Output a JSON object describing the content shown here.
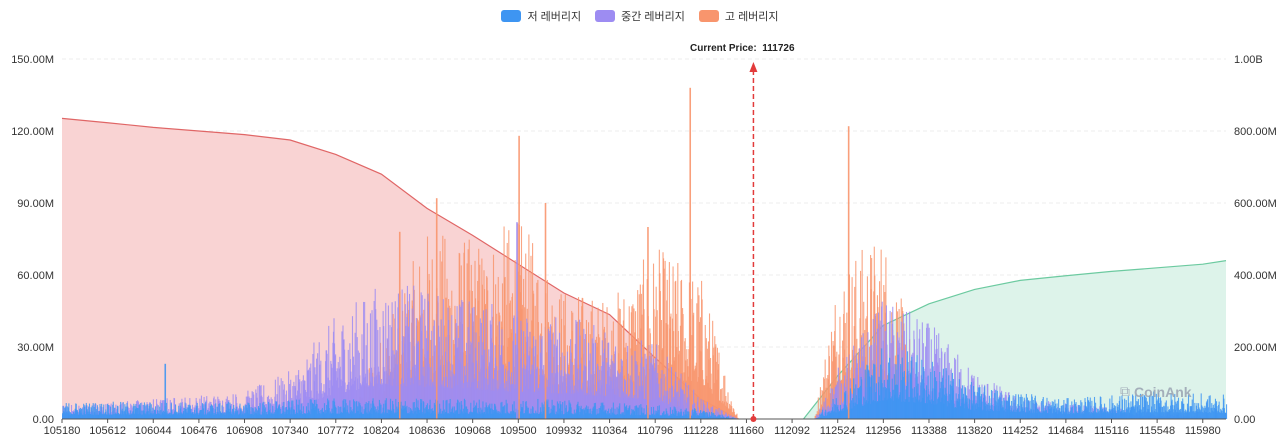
{
  "legend": {
    "low_label": "저 레버리지",
    "mid_label": "중간 레버리지",
    "high_label": "고 레버리지"
  },
  "current_price": {
    "label": "Current Price",
    "value": "111726"
  },
  "watermark": "CoinAnk",
  "colors": {
    "low": "#3e95f2",
    "mid": "#9d8cf2",
    "high": "#f8956d",
    "cum_short_fill": "#f9d3d3",
    "cum_short_line": "#e06666",
    "cum_long_fill": "#ddf3ea",
    "cum_long_line": "#6ccaa0",
    "price_marker": "#e23b3b",
    "grid": "#eeeeee"
  },
  "chart_data": {
    "type": "bar",
    "x_ticks": [
      "105180",
      "105612",
      "106044",
      "106476",
      "106908",
      "107340",
      "107772",
      "108204",
      "108636",
      "109068",
      "109500",
      "109932",
      "110364",
      "110796",
      "111228",
      "111660",
      "112092",
      "112524",
      "112956",
      "113388",
      "113820",
      "114252",
      "114684",
      "115116",
      "115548",
      "115980"
    ],
    "x_range": [
      105180,
      116200
    ],
    "y_left": {
      "range": [
        0,
        150
      ],
      "ticks": [
        "0.00",
        "30.00M",
        "60.00M",
        "90.00M",
        "120.00M",
        "150.00M"
      ]
    },
    "y_right": {
      "range": [
        0,
        1000
      ],
      "ticks": [
        "0.00",
        "200.00M",
        "400.00M",
        "600.00M",
        "800.00M",
        "1.00B"
      ]
    },
    "current_price": 111726,
    "cumulative_short": {
      "name": "cumulative short liquidation",
      "unit": "M",
      "x": [
        105180,
        105612,
        106044,
        106476,
        106908,
        107340,
        107772,
        108204,
        108636,
        109068,
        109500,
        109932,
        110364,
        110796,
        111228,
        111580
      ],
      "y": [
        835,
        823,
        810,
        800,
        790,
        775,
        735,
        680,
        585,
        510,
        430,
        350,
        290,
        170,
        55,
        0
      ]
    },
    "cumulative_long": {
      "name": "cumulative long liquidation",
      "unit": "M",
      "x": [
        112200,
        112524,
        112956,
        113388,
        113820,
        114252,
        114684,
        115116,
        115548,
        115980,
        116200
      ],
      "y": [
        0,
        120,
        260,
        320,
        360,
        385,
        398,
        410,
        420,
        430,
        440
      ]
    },
    "bar_envelope": {
      "unit": "M",
      "low": {
        "x": [
          105180,
          106044,
          106908,
          107772,
          108636,
          109500,
          110364,
          111228,
          111580,
          112300,
          112524,
          112956,
          113388,
          113820,
          114252,
          114684,
          115116,
          115548,
          116200
        ],
        "y": [
          5,
          5,
          5,
          6,
          6,
          6,
          5,
          3,
          0,
          0,
          8,
          22,
          18,
          10,
          8,
          6,
          7,
          8,
          7
        ]
      },
      "mid": {
        "x": [
          105180,
          106044,
          106908,
          107340,
          107772,
          108204,
          108636,
          109068,
          109500,
          109932,
          110364,
          110796,
          111228,
          111580,
          112300,
          112524,
          112956,
          113388,
          113820,
          114252,
          116200
        ],
        "y": [
          4,
          6,
          8,
          14,
          30,
          40,
          38,
          35,
          32,
          30,
          26,
          22,
          6,
          0,
          0,
          15,
          35,
          28,
          14,
          6,
          0
        ]
      },
      "high": {
        "x": [
          105180,
          107900,
          108204,
          108636,
          109068,
          109500,
          109932,
          110364,
          110796,
          111228,
          111400,
          111580,
          112300,
          112524,
          112956,
          113200,
          113300,
          116200
        ],
        "y": [
          0,
          0,
          25,
          55,
          52,
          58,
          38,
          35,
          50,
          42,
          22,
          0,
          0,
          45,
          55,
          25,
          0,
          0
        ]
      },
      "peaks": [
        {
          "series": "high",
          "x": 111120,
          "y": 138
        },
        {
          "series": "high",
          "x": 109500,
          "y": 118
        },
        {
          "series": "high",
          "x": 112620,
          "y": 122
        },
        {
          "series": "high",
          "x": 108720,
          "y": 92
        },
        {
          "series": "high",
          "x": 109750,
          "y": 90
        },
        {
          "series": "mid",
          "x": 109480,
          "y": 82
        },
        {
          "series": "high",
          "x": 110720,
          "y": 80
        },
        {
          "series": "high",
          "x": 108370,
          "y": 78
        },
        {
          "series": "low",
          "x": 106150,
          "y": 23
        }
      ]
    }
  }
}
